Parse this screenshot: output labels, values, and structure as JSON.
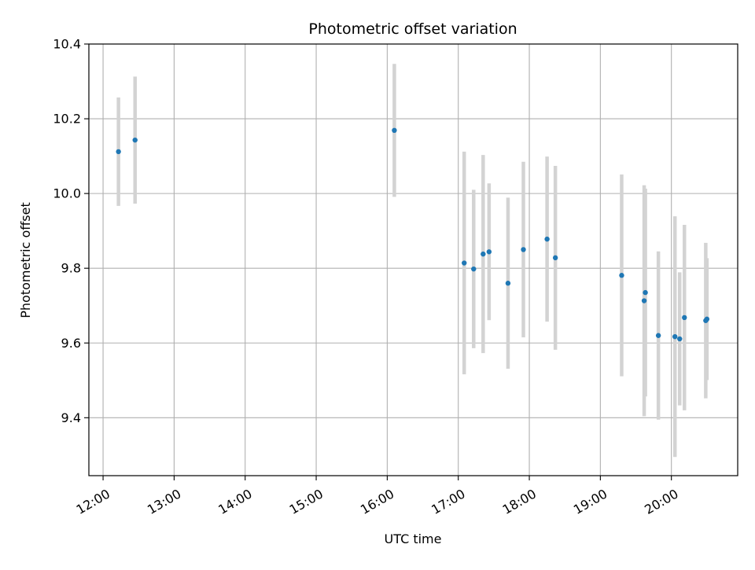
{
  "chart_data": {
    "type": "scatter",
    "title": "Photometric offset variation",
    "xlabel": "UTC time",
    "ylabel": "Photometric offset",
    "xlim": [
      "11:48",
      "20:56"
    ],
    "ylim": [
      9.245,
      10.4
    ],
    "x_ticks": [
      "12:00",
      "13:00",
      "14:00",
      "15:00",
      "16:00",
      "17:00",
      "18:00",
      "19:00",
      "20:00"
    ],
    "y_ticks": [
      "9.4",
      "9.6",
      "9.8",
      "10.0",
      "10.2",
      "10.4"
    ],
    "grid": true,
    "colors": {
      "point": "#1f77b4",
      "errorbar": "#d3d3d3",
      "grid": "#b0b0b0"
    },
    "series": [
      {
        "points": [
          {
            "x": "12:13",
            "y": 10.112,
            "err": 0.145
          },
          {
            "x": "12:27",
            "y": 10.143,
            "err": 0.17
          },
          {
            "x": "16:06",
            "y": 10.169,
            "err": 0.178
          },
          {
            "x": "17:05",
            "y": 9.814,
            "err": 0.298
          },
          {
            "x": "17:13",
            "y": 9.798,
            "err": 0.212
          },
          {
            "x": "17:21",
            "y": 9.838,
            "err": 0.265
          },
          {
            "x": "17:26",
            "y": 9.844,
            "err": 0.183
          },
          {
            "x": "17:42",
            "y": 9.76,
            "err": 0.229
          },
          {
            "x": "17:55",
            "y": 9.85,
            "err": 0.235
          },
          {
            "x": "18:15",
            "y": 9.878,
            "err": 0.221
          },
          {
            "x": "18:22",
            "y": 9.828,
            "err": 0.246
          },
          {
            "x": "19:18",
            "y": 9.781,
            "err": 0.27
          },
          {
            "x": "19:37",
            "y": 9.713,
            "err": 0.309
          },
          {
            "x": "19:38",
            "y": 9.735,
            "err": 0.278
          },
          {
            "x": "19:49",
            "y": 9.62,
            "err": 0.225
          },
          {
            "x": "20:03",
            "y": 9.617,
            "err": 0.322
          },
          {
            "x": "20:07",
            "y": 9.611,
            "err": 0.178
          },
          {
            "x": "20:11",
            "y": 9.668,
            "err": 0.248
          },
          {
            "x": "20:29",
            "y": 9.66,
            "err": 0.208
          },
          {
            "x": "20:30",
            "y": 9.664,
            "err": 0.163
          }
        ]
      }
    ]
  }
}
